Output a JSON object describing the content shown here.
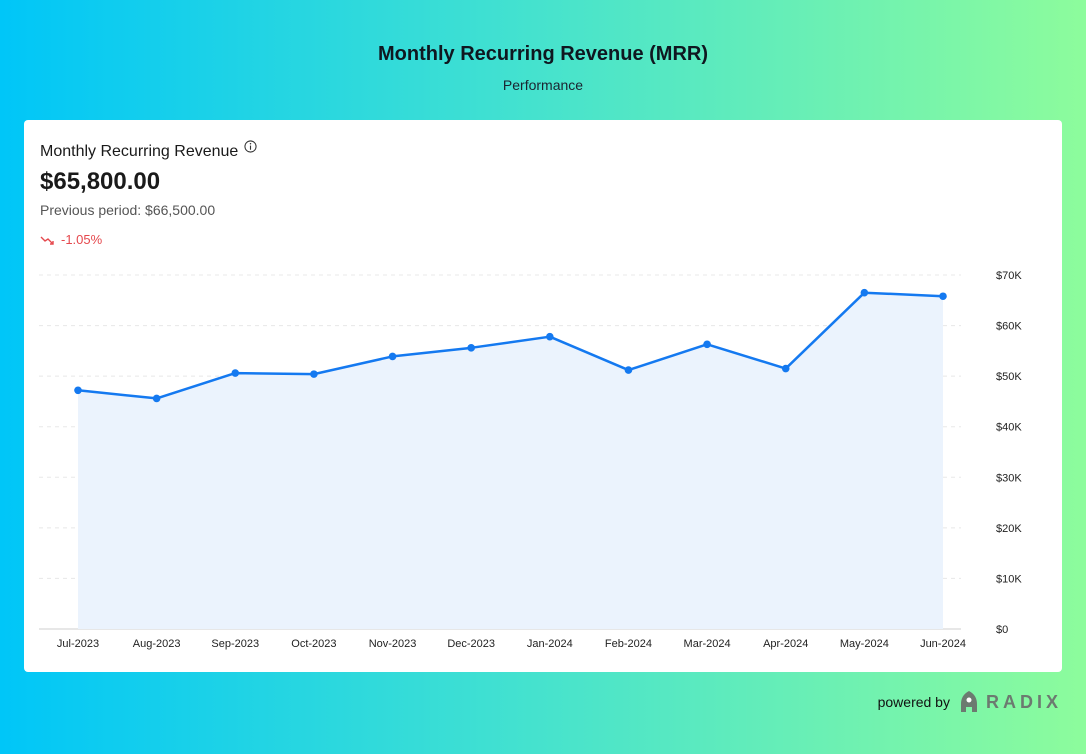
{
  "page": {
    "title": "Monthly Recurring Revenue (MRR)",
    "subtitle": "Performance"
  },
  "card": {
    "metric_label": "Monthly Recurring Revenue",
    "metric_value": "$65,800.00",
    "previous_period": "Previous period: $66,500.00",
    "change": "-1.05%",
    "change_color": "#e5484d"
  },
  "footer": {
    "powered_by": "powered by",
    "brand": "RADIX"
  },
  "colors": {
    "line": "#1479f0",
    "area": "#ebf3fd",
    "grid": "#e8e8e8"
  },
  "chart_data": {
    "type": "area",
    "categories": [
      "Jul-2023",
      "Aug-2023",
      "Sep-2023",
      "Oct-2023",
      "Nov-2023",
      "Dec-2023",
      "Jan-2024",
      "Feb-2024",
      "Mar-2024",
      "Apr-2024",
      "May-2024",
      "Jun-2024"
    ],
    "values": [
      47200,
      45600,
      50600,
      50400,
      53900,
      55600,
      57800,
      51200,
      56300,
      51500,
      66500,
      65800
    ],
    "y_ticks": [
      "$0",
      "$10K",
      "$20K",
      "$30K",
      "$40K",
      "$50K",
      "$60K",
      "$70K"
    ],
    "ylim": [
      0,
      70000
    ],
    "y_axis_position": "right",
    "grid": true
  }
}
